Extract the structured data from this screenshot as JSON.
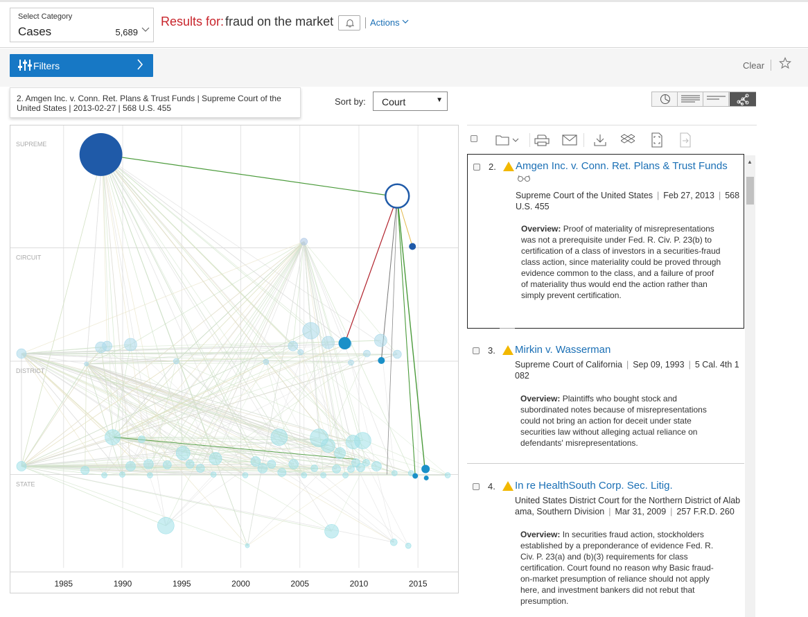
{
  "header": {
    "category_label": "Select Category",
    "category_value": "Cases",
    "category_count": "5,689",
    "results_prefix": "Results for:",
    "results_query": "fraud on the market",
    "actions_label": "Actions"
  },
  "filters": {
    "button_label": "Filters",
    "clear_label": "Clear"
  },
  "graph": {
    "tooltip": "2. Amgen Inc. v. Conn. Ret. Plans & Trust Funds | Supreme Court of the United States | 2013-02-27 | 568 U.S. 455",
    "sort_label": "Sort by:",
    "sort_value": "Court",
    "court_levels": [
      "SUPREME",
      "CIRCUIT",
      "DISTRICT",
      "STATE"
    ],
    "years": [
      "1985",
      "1990",
      "1995",
      "2000",
      "2005",
      "2010",
      "2015"
    ],
    "colors": {
      "supreme": "#1f5aa8",
      "circuit": "#aac4e4",
      "district": "#a9d8ea",
      "state": "#9ee0e8",
      "cite_green": "#4a9a3a",
      "cite_red": "#b0202a",
      "highlight": "#1a90c8"
    }
  },
  "results": [
    {
      "num": "2.",
      "title": "Amgen Inc. v. Conn. Ret. Plans & Trust Funds",
      "court_line1": "Supreme Court of the United States",
      "date": "Feb 27, 2013",
      "cite_a": "568",
      "court_line2": "U.S. 455",
      "overview_label": "Overview:",
      "overview": "Proof of materiality of misrepresentations was not a prerequisite under Fed. R. Civ. P. 23(b) to certification of a class of investors in a securities-fraud class action, since materiality could be proved through evidence common to the class, and a failure of proof of materiality thus would end the action rather than simply prevent certification."
    },
    {
      "num": "3.",
      "title": "Mirkin v. Wasserman",
      "court_line1": "Supreme Court of California",
      "date": "Sep 09, 1993",
      "cite_a": "5 Cal. 4th 1",
      "court_line2": "082",
      "overview_label": "Overview:",
      "overview": "Plaintiffs who bought stock and subordinated notes because of misrepresentations could not bring an action for deceit under state securities law without alleging actual reliance on defendants' misrepresentations."
    },
    {
      "num": "4.",
      "title": "In re HealthSouth Corp. Sec. Litig.",
      "court_line1": "United States District Court for the Northern District of Alab",
      "court_line2a": "ama, Southern Division",
      "date": "Mar 31, 2009",
      "cite_a": "257 F.R.D. 260",
      "overview_label": "Overview:",
      "overview": "In securities fraud action, stockholders established by a preponderance of evidence Fed. R. Civ. P. 23(a) and (b)(3) requirements for class certification. Court found no reason why Basic fraud-on-market presumption of reliance should not apply here, and investment bankers did not rebut that presumption."
    }
  ]
}
